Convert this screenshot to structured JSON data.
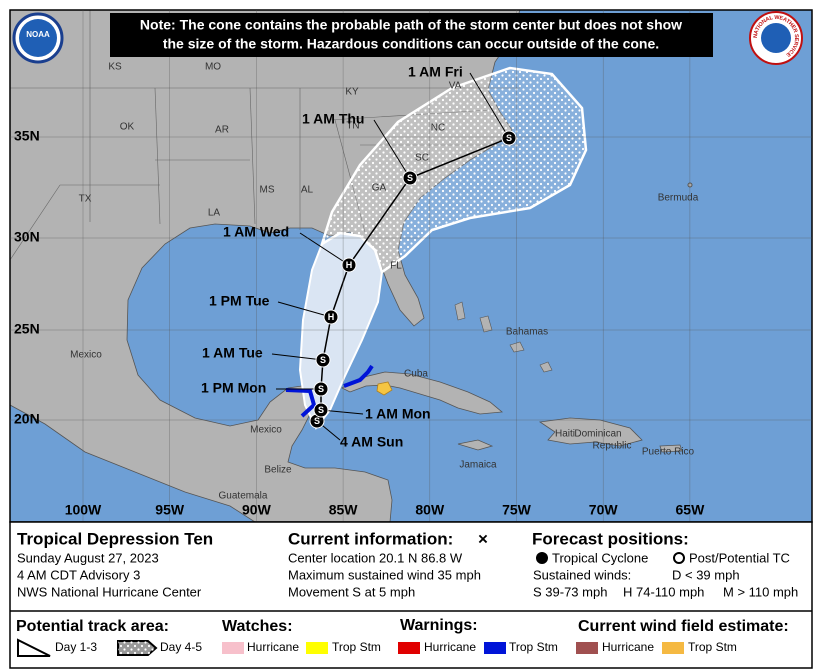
{
  "header": {
    "note": [
      "Note: The cone contains the probable path of the storm center but does not show",
      "the size of the storm. Hazardous conditions can occur outside of the cone."
    ],
    "noaa_logo": "NOAA",
    "nws_logo": "NATIONAL WEATHER SERVICE"
  },
  "map": {
    "lat_labels": [
      "35N",
      "30N",
      "25N",
      "20N"
    ],
    "lon_labels": [
      "100W",
      "95W",
      "90W",
      "85W",
      "80W",
      "75W",
      "70W",
      "65W"
    ],
    "places": [
      "KS",
      "MO",
      "KY",
      "VA",
      "OK",
      "AR",
      "TN",
      "NC",
      "SC",
      "TX",
      "MS",
      "AL",
      "GA",
      "LA",
      "FL",
      "Bermuda",
      "Mexico",
      "Bahamas",
      "Cuba",
      "Mexico",
      "Belize",
      "Guatemala",
      "Jamaica",
      "Haiti",
      "Dominican",
      "Republic",
      "Puerto Rico"
    ],
    "forecast_points": [
      {
        "time": "4 AM Sun",
        "marker": "S"
      },
      {
        "time": "1 AM Mon",
        "marker": "S"
      },
      {
        "time": "1 PM Mon",
        "marker": "S"
      },
      {
        "time": "1 AM Tue",
        "marker": "S"
      },
      {
        "time": "1 PM Tue",
        "marker": "H"
      },
      {
        "time": "1 AM Wed",
        "marker": "H"
      },
      {
        "time": "1 AM Thu",
        "marker": "S"
      },
      {
        "time": "1 AM Fri",
        "marker": "S"
      }
    ]
  },
  "info": {
    "storm": {
      "title": "Tropical Depression Ten",
      "lines": [
        "Sunday August 27, 2023",
        "4 AM CDT Advisory 3",
        "NWS National Hurricane Center"
      ]
    },
    "current": {
      "title": "Current information:",
      "symbol": "×",
      "lines": [
        "Center location 20.1 N 86.8 W",
        "Maximum sustained wind 35 mph",
        "Movement S at 5 mph"
      ]
    },
    "forecast": {
      "title": "Forecast positions:",
      "symbols": [
        "Tropical Cyclone",
        "Post/Potential TC"
      ],
      "winds_title": "Sustained winds:",
      "winds": [
        "D < 39 mph",
        "S 39-73 mph",
        "H 74-110 mph",
        "M > 110 mph"
      ]
    }
  },
  "legend": {
    "track": {
      "title": "Potential track area:",
      "items": [
        "Day 1-3",
        "Day 4-5"
      ]
    },
    "watches": {
      "title": "Watches:",
      "items": [
        "Hurricane",
        "Trop Stm"
      ]
    },
    "warnings": {
      "title": "Warnings:",
      "items": [
        "Hurricane",
        "Trop Stm"
      ]
    },
    "wind_field": {
      "title": "Current wind field estimate:",
      "items": [
        "Hurricane",
        "Trop Stm"
      ]
    }
  }
}
